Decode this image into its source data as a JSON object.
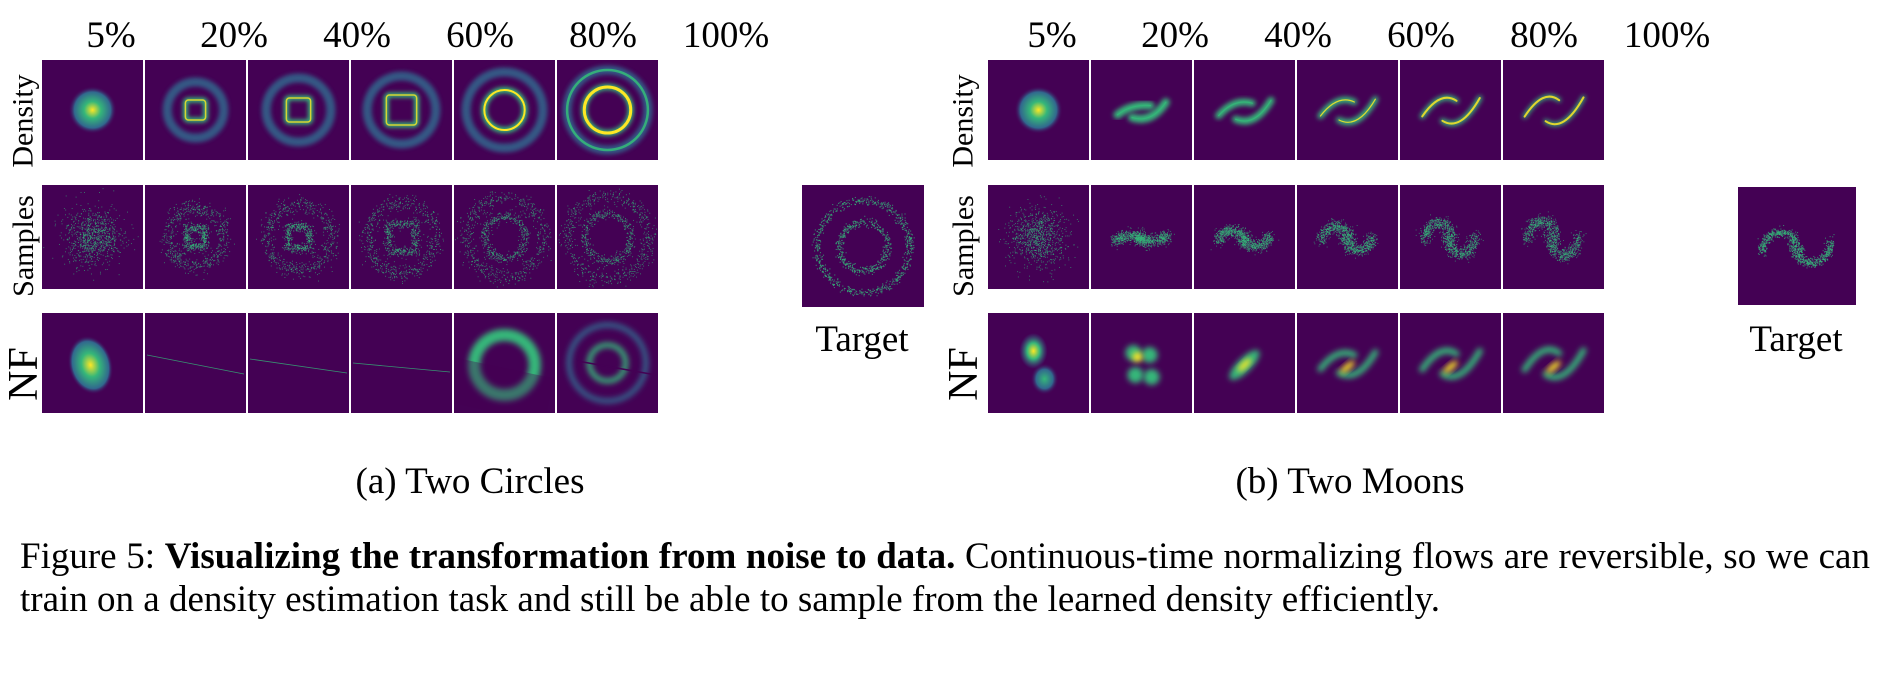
{
  "column_headers": [
    "5%",
    "20%",
    "40%",
    "60%",
    "80%",
    "100%"
  ],
  "row_labels": [
    "Density",
    "Samples",
    "NF"
  ],
  "target_label": "Target",
  "subfigures": [
    {
      "caption": "(a) Two Circles",
      "dataset": "circles"
    },
    {
      "caption": "(b) Two Moons",
      "dataset": "moons"
    }
  ],
  "caption": {
    "prefix": "Figure 5: ",
    "bold": "Visualizing the transformation from noise to data.",
    "body": " Continuous-time normalizing flows are reversible, so we can train on a density estimation task and still be able to sample from the learned density efficiently."
  },
  "colors": {
    "background": "#440154",
    "mid": "#31688e",
    "teal": "#35b779",
    "high": "#fde725"
  }
}
